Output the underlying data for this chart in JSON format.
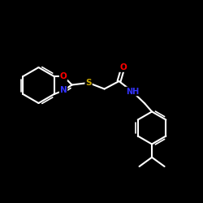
{
  "background_color": "#000000",
  "bond_color": "#ffffff",
  "atom_colors": {
    "O": "#ff0000",
    "N": "#3333ff",
    "S": "#ccaa00",
    "C": "#ffffff",
    "H": "#ffffff"
  },
  "figsize": [
    2.5,
    2.5
  ],
  "dpi": 100
}
